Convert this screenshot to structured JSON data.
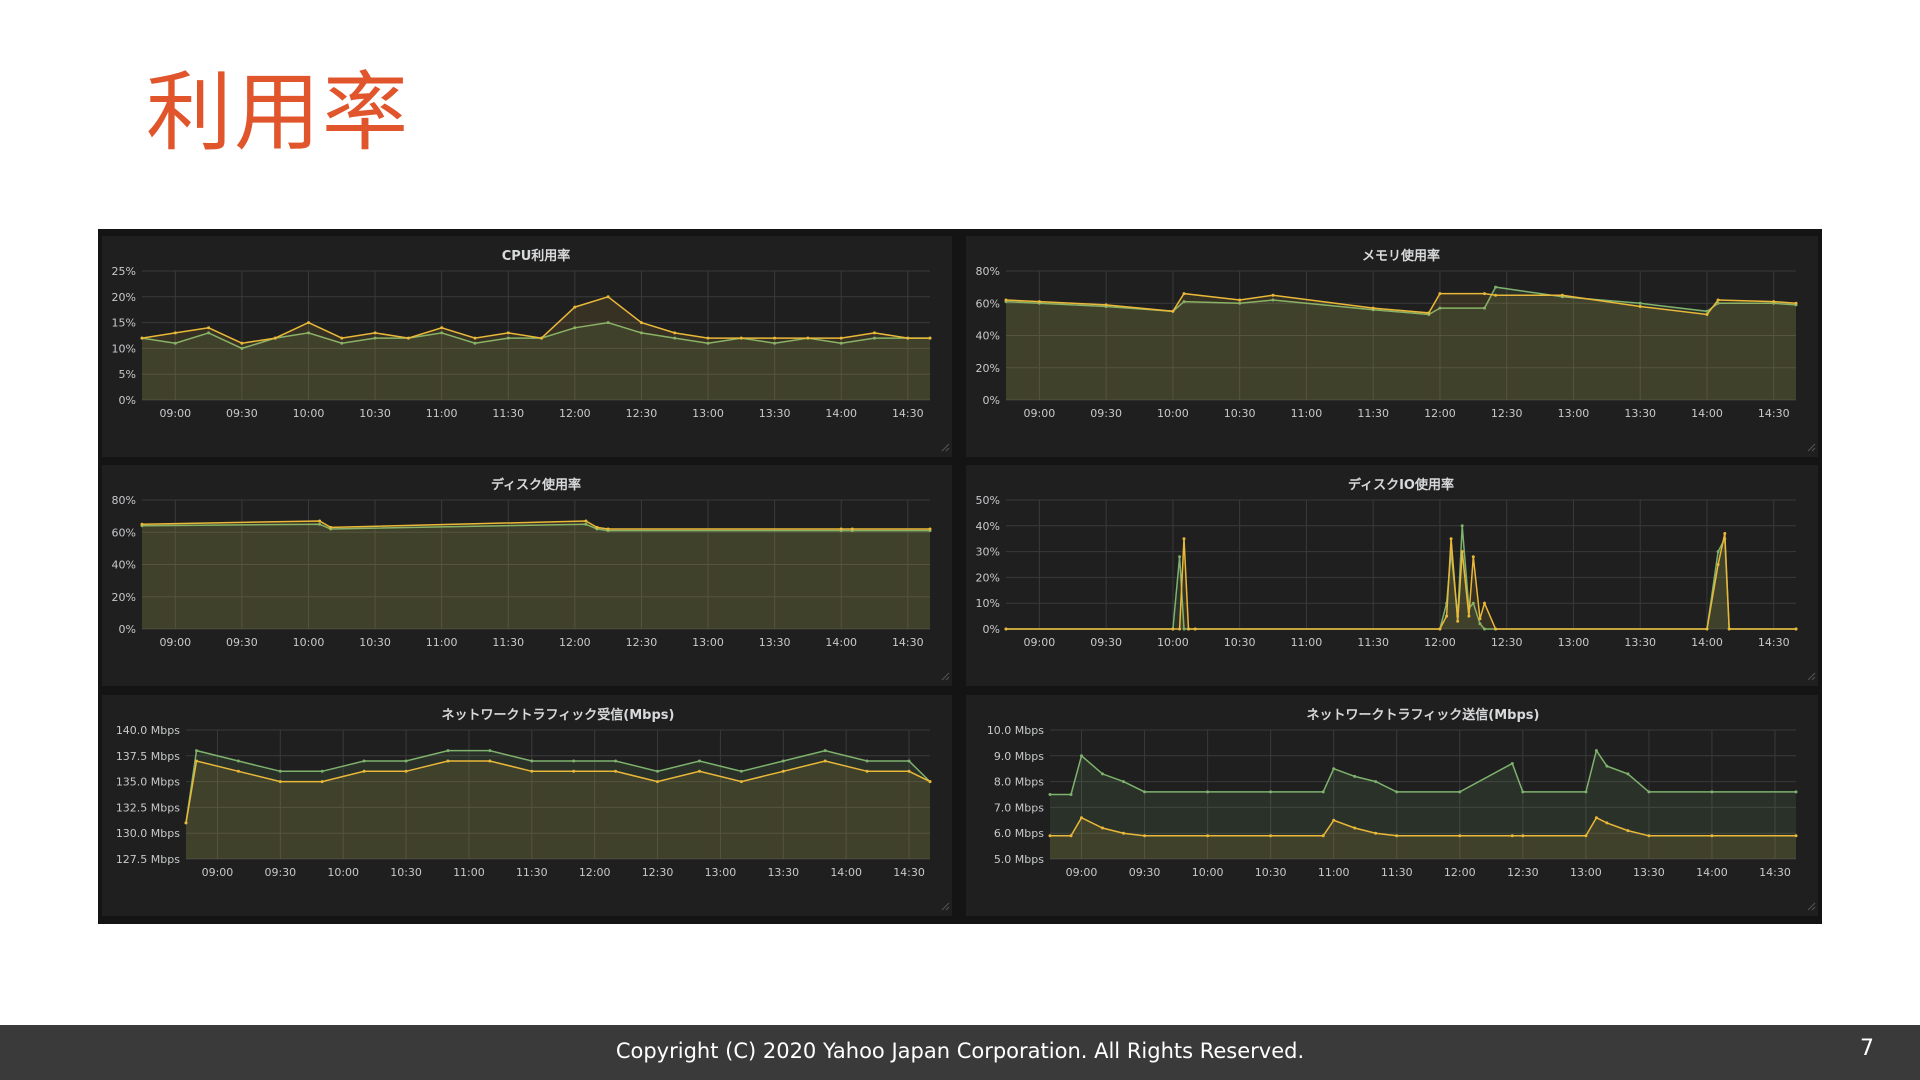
{
  "slide": {
    "title": "利用率",
    "page_number": "7"
  },
  "footer": {
    "copyright": "Copyright (C) 2020 Yahoo Japan Corporation. All Rights Reserved."
  },
  "colors": {
    "green": "#7eb26d",
    "yellow": "#eab839",
    "title": "#e0552c",
    "panel_bg": "#1f1f20"
  },
  "chart_data": [
    {
      "id": "cpu",
      "type": "line",
      "title": "CPU利用率",
      "ylim": [
        0,
        25
      ],
      "ytick_labels": [
        "0%",
        "5%",
        "10%",
        "15%",
        "20%",
        "25%"
      ],
      "xtick_labels": [
        "09:00",
        "09:30",
        "10:00",
        "10:30",
        "11:00",
        "11:30",
        "12:00",
        "12:30",
        "13:00",
        "13:30",
        "14:00",
        "14:30"
      ],
      "x": [
        "08:45",
        "09:00",
        "09:15",
        "09:30",
        "09:45",
        "10:00",
        "10:15",
        "10:30",
        "10:45",
        "11:00",
        "11:15",
        "11:30",
        "11:45",
        "12:00",
        "12:15",
        "12:30",
        "12:45",
        "13:00",
        "13:15",
        "13:30",
        "13:45",
        "14:00",
        "14:15",
        "14:30",
        "14:40"
      ],
      "series": [
        {
          "color": "green",
          "values": [
            12,
            11,
            13,
            10,
            12,
            13,
            11,
            12,
            12,
            13,
            11,
            12,
            12,
            14,
            15,
            13,
            12,
            11,
            12,
            11,
            12,
            11,
            12,
            12,
            12
          ]
        },
        {
          "color": "yellow",
          "values": [
            12,
            13,
            14,
            11,
            12,
            15,
            12,
            13,
            12,
            14,
            12,
            13,
            12,
            18,
            20,
            15,
            13,
            12,
            12,
            12,
            12,
            12,
            13,
            12,
            12
          ]
        }
      ]
    },
    {
      "id": "memory",
      "type": "line",
      "title": "メモリ使用率",
      "ylim": [
        0,
        80
      ],
      "ytick_labels": [
        "0%",
        "20%",
        "40%",
        "60%",
        "80%"
      ],
      "xtick_labels": [
        "09:00",
        "09:30",
        "10:00",
        "10:30",
        "11:00",
        "11:30",
        "12:00",
        "12:30",
        "13:00",
        "13:30",
        "14:00",
        "14:30"
      ],
      "x": [
        "08:45",
        "09:00",
        "09:30",
        "10:00",
        "10:05",
        "10:30",
        "10:45",
        "11:30",
        "11:55",
        "12:00",
        "12:20",
        "12:25",
        "12:55",
        "13:30",
        "14:00",
        "14:05",
        "14:30",
        "14:40"
      ],
      "series": [
        {
          "color": "green",
          "values": [
            61,
            60,
            58,
            55,
            61,
            60,
            62,
            56,
            53,
            57,
            57,
            70,
            64,
            60,
            55,
            60,
            60,
            59
          ]
        },
        {
          "color": "yellow",
          "values": [
            62,
            61,
            59,
            55,
            66,
            62,
            65,
            57,
            54,
            66,
            66,
            65,
            65,
            58,
            53,
            62,
            61,
            60
          ]
        }
      ]
    },
    {
      "id": "disk",
      "type": "line",
      "title": "ディスク使用率",
      "ylim": [
        0,
        80
      ],
      "ytick_labels": [
        "0%",
        "20%",
        "40%",
        "60%",
        "80%"
      ],
      "xtick_labels": [
        "09:00",
        "09:30",
        "10:00",
        "10:30",
        "11:00",
        "11:30",
        "12:00",
        "12:30",
        "13:00",
        "13:30",
        "14:00",
        "14:30"
      ],
      "x": [
        "08:45",
        "10:05",
        "10:10",
        "12:05",
        "12:10",
        "12:15",
        "14:00",
        "14:05",
        "14:40"
      ],
      "series": [
        {
          "color": "green",
          "values": [
            64,
            65,
            62,
            65,
            62,
            61,
            61,
            61,
            61
          ]
        },
        {
          "color": "yellow",
          "values": [
            65,
            67,
            63,
            67,
            63,
            62,
            62,
            62,
            62
          ]
        }
      ]
    },
    {
      "id": "diskio",
      "type": "line",
      "title": "ディスクIO使用率",
      "ylim": [
        0,
        50
      ],
      "ytick_labels": [
        "0%",
        "10%",
        "20%",
        "30%",
        "40%",
        "50%"
      ],
      "xtick_labels": [
        "09:00",
        "09:30",
        "10:00",
        "10:30",
        "11:00",
        "11:30",
        "12:00",
        "12:30",
        "13:00",
        "13:30",
        "14:00",
        "14:30"
      ],
      "x": [
        "08:45",
        "10:00",
        "10:03",
        "10:05",
        "10:07",
        "10:10",
        "12:00",
        "12:03",
        "12:05",
        "12:08",
        "12:10",
        "12:13",
        "12:15",
        "12:18",
        "12:20",
        "12:25",
        "14:00",
        "14:05",
        "14:08",
        "14:10",
        "14:40"
      ],
      "series": [
        {
          "color": "green",
          "values": [
            0,
            0,
            28,
            0,
            0,
            0,
            0,
            10,
            30,
            5,
            40,
            8,
            10,
            2,
            0,
            0,
            0,
            30,
            35,
            0,
            0
          ]
        },
        {
          "color": "yellow",
          "values": [
            0,
            0,
            0,
            35,
            0,
            0,
            0,
            5,
            35,
            3,
            30,
            5,
            28,
            4,
            10,
            0,
            0,
            25,
            37,
            0,
            0
          ]
        }
      ]
    },
    {
      "id": "net-rx",
      "type": "line",
      "title": "ネットワークトラフィック受信(Mbps)",
      "ylim": [
        127.5,
        140
      ],
      "ytick_labels": [
        "127.5 Mbps",
        "130.0 Mbps",
        "132.5 Mbps",
        "135.0 Mbps",
        "137.5 Mbps",
        "140.0 Mbps"
      ],
      "xtick_labels": [
        "09:00",
        "09:30",
        "10:00",
        "10:30",
        "11:00",
        "11:30",
        "12:00",
        "12:30",
        "13:00",
        "13:30",
        "14:00",
        "14:30"
      ],
      "x": [
        "08:45",
        "08:50",
        "09:10",
        "09:30",
        "09:50",
        "10:10",
        "10:30",
        "10:50",
        "11:10",
        "11:30",
        "11:50",
        "12:10",
        "12:30",
        "12:50",
        "13:10",
        "13:30",
        "13:50",
        "14:10",
        "14:30",
        "14:40"
      ],
      "series": [
        {
          "color": "green",
          "values": [
            131,
            138,
            137,
            136,
            136,
            137,
            137,
            138,
            138,
            137,
            137,
            137,
            136,
            137,
            136,
            137,
            138,
            137,
            137,
            135
          ]
        },
        {
          "color": "yellow",
          "values": [
            131,
            137,
            136,
            135,
            135,
            136,
            136,
            137,
            137,
            136,
            136,
            136,
            135,
            136,
            135,
            136,
            137,
            136,
            136,
            135
          ]
        }
      ]
    },
    {
      "id": "net-tx",
      "type": "line",
      "title": "ネットワークトラフィック送信(Mbps)",
      "ylim": [
        5,
        10
      ],
      "ytick_labels": [
        "5.0 Mbps",
        "6.0 Mbps",
        "7.0 Mbps",
        "8.0 Mbps",
        "9.0 Mbps",
        "10.0 Mbps"
      ],
      "xtick_labels": [
        "09:00",
        "09:30",
        "10:00",
        "10:30",
        "11:00",
        "11:30",
        "12:00",
        "12:30",
        "13:00",
        "13:30",
        "14:00",
        "14:30"
      ],
      "x": [
        "08:45",
        "08:55",
        "09:00",
        "09:10",
        "09:20",
        "09:30",
        "10:00",
        "10:30",
        "10:55",
        "11:00",
        "11:10",
        "11:20",
        "11:30",
        "12:00",
        "12:25",
        "12:30",
        "13:00",
        "13:05",
        "13:10",
        "13:20",
        "13:30",
        "14:00",
        "14:40"
      ],
      "series": [
        {
          "color": "green",
          "values": [
            7.5,
            7.5,
            9.0,
            8.3,
            8.0,
            7.6,
            7.6,
            7.6,
            7.6,
            8.5,
            8.2,
            8.0,
            7.6,
            7.6,
            8.7,
            7.6,
            7.6,
            9.2,
            8.6,
            8.3,
            7.6,
            7.6,
            7.6
          ]
        },
        {
          "color": "yellow",
          "values": [
            5.9,
            5.9,
            6.6,
            6.2,
            6.0,
            5.9,
            5.9,
            5.9,
            5.9,
            6.5,
            6.2,
            6.0,
            5.9,
            5.9,
            5.9,
            5.9,
            5.9,
            6.6,
            6.4,
            6.1,
            5.9,
            5.9,
            5.9
          ]
        }
      ]
    }
  ]
}
